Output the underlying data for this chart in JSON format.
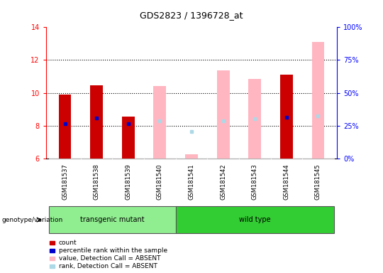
{
  "title": "GDS2823 / 1396728_at",
  "samples": [
    "GSM181537",
    "GSM181538",
    "GSM181539",
    "GSM181540",
    "GSM181541",
    "GSM181542",
    "GSM181543",
    "GSM181544",
    "GSM181545"
  ],
  "ylim_left": [
    6,
    14
  ],
  "ylim_right": [
    0,
    100
  ],
  "yticks_left": [
    6,
    8,
    10,
    12,
    14
  ],
  "yticks_right": [
    0,
    25,
    50,
    75,
    100
  ],
  "count_values": [
    9.9,
    10.45,
    8.55,
    null,
    null,
    null,
    null,
    11.1,
    null
  ],
  "percentile_rank_left": [
    8.1,
    8.45,
    8.1,
    null,
    null,
    null,
    null,
    8.5,
    null
  ],
  "absent_value": [
    null,
    null,
    null,
    10.4,
    6.25,
    11.35,
    10.85,
    null,
    13.1
  ],
  "absent_rank_left": [
    null,
    null,
    null,
    8.3,
    7.65,
    8.3,
    8.4,
    null,
    8.6
  ],
  "count_color": "#CC0000",
  "percentile_color": "#0000CC",
  "absent_value_color": "#FFB6C1",
  "absent_rank_color": "#ADD8E6",
  "bar_width": 0.4,
  "transgenic_color": "#90EE90",
  "wildtype_color": "#32CD32",
  "tick_bg": "#C8C8C8",
  "transgenic_label": "transgenic mutant",
  "wildtype_label": "wild type",
  "genotype_label": "genotype/variation",
  "legend_items": [
    "count",
    "percentile rank within the sample",
    "value, Detection Call = ABSENT",
    "rank, Detection Call = ABSENT"
  ]
}
